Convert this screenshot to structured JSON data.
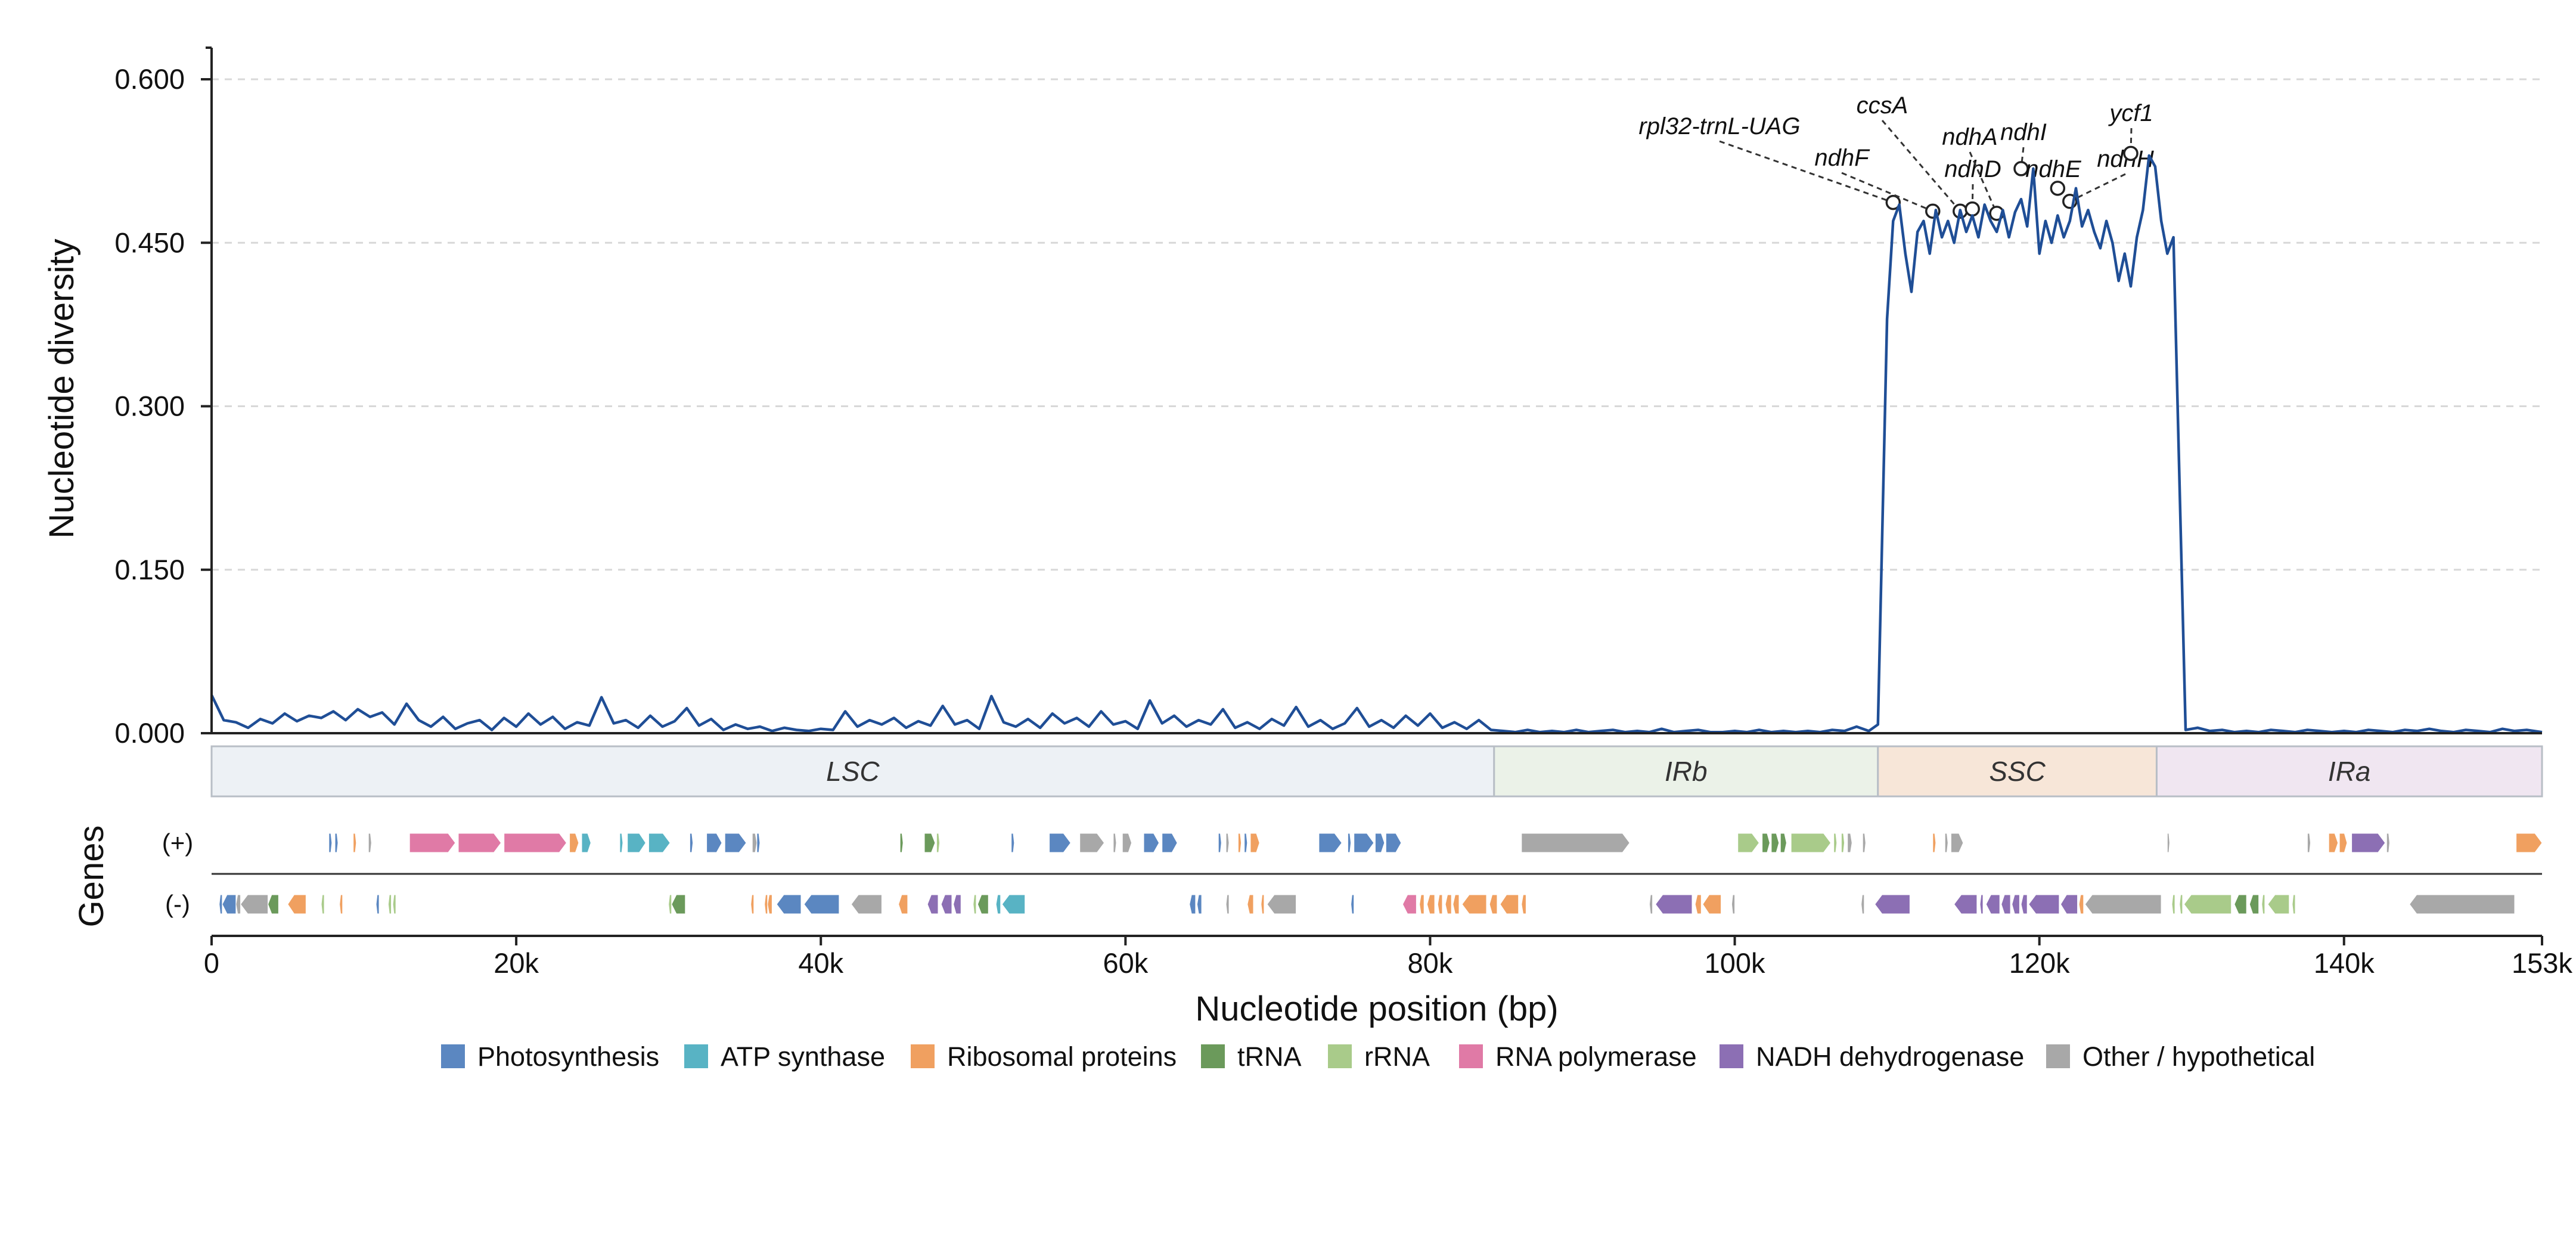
{
  "chart_data": {
    "type": "line",
    "ylabel": "Nucleotide diversity",
    "xlabel": "Nucleotide position (bp)",
    "genes_label": "Genes",
    "xlim": [
      0,
      153000
    ],
    "ylim": [
      0,
      0.62
    ],
    "yticks": [
      0.0,
      0.15,
      0.3,
      0.45,
      0.6
    ],
    "ytick_labels": [
      "0.000",
      "0.150",
      "0.300",
      "0.450",
      "0.600"
    ],
    "xticks": [
      0,
      20000,
      40000,
      60000,
      80000,
      100000,
      120000,
      140000,
      153000
    ],
    "xtick_labels": [
      "0",
      "20k",
      "40k",
      "60k",
      "80k",
      "100k",
      "120k",
      "140k",
      "153k"
    ],
    "grid": true,
    "series": [
      {
        "color": "#1f4e96",
        "x": [
          0,
          800,
          1600,
          2400,
          3200,
          4000,
          4800,
          5600,
          6400,
          7200,
          8000,
          8800,
          9600,
          10400,
          11200,
          12000,
          12800,
          13600,
          14400,
          15200,
          16000,
          16800,
          17600,
          18400,
          19200,
          20000,
          20800,
          21600,
          22400,
          23200,
          24000,
          24800,
          25600,
          26400,
          27200,
          28000,
          28800,
          29600,
          30400,
          31200,
          32000,
          32800,
          33600,
          34400,
          35200,
          36000,
          36800,
          37600,
          38400,
          39200,
          40000,
          40800,
          41600,
          42400,
          43200,
          44000,
          44800,
          45600,
          46400,
          47200,
          48000,
          48800,
          49600,
          50400,
          51200,
          52000,
          52800,
          53600,
          54400,
          55200,
          56000,
          56800,
          57600,
          58400,
          59200,
          60000,
          60800,
          61600,
          62400,
          63200,
          64000,
          64800,
          65600,
          66400,
          67200,
          68000,
          68800,
          69600,
          70400,
          71200,
          72000,
          72800,
          73600,
          74400,
          75200,
          76000,
          76800,
          77600,
          78400,
          79200,
          80000,
          80800,
          81600,
          82400,
          83200,
          84000,
          84800,
          85600,
          86400,
          87200,
          88000,
          88800,
          89600,
          90400,
          91200,
          92000,
          92800,
          93600,
          94400,
          95200,
          96000,
          96800,
          97600,
          98400,
          99200,
          100000,
          100800,
          101600,
          102400,
          103200,
          104000,
          104800,
          105600,
          106400,
          107200,
          108000,
          108800,
          109400,
          110000,
          110400,
          110800,
          111200,
          111600,
          112000,
          112400,
          112800,
          113200,
          113600,
          114000,
          114400,
          114800,
          115200,
          115600,
          116000,
          116400,
          116800,
          117200,
          117600,
          118000,
          118400,
          118800,
          119200,
          119600,
          120000,
          120400,
          120800,
          121200,
          121600,
          122000,
          122400,
          122800,
          123200,
          123600,
          124000,
          124400,
          124800,
          125200,
          125600,
          126000,
          126400,
          126800,
          127200,
          127600,
          128000,
          128400,
          128800,
          129600,
          130400,
          131200,
          132000,
          132800,
          133600,
          134400,
          135200,
          136000,
          136800,
          137600,
          138400,
          139200,
          140000,
          140800,
          141600,
          142400,
          143200,
          144000,
          144800,
          145600,
          146400,
          147200,
          148000,
          148800,
          149600,
          150400,
          151200,
          152000,
          153000
        ],
        "y": [
          0.035,
          0.012,
          0.01,
          0.005,
          0.013,
          0.009,
          0.018,
          0.011,
          0.016,
          0.014,
          0.02,
          0.012,
          0.022,
          0.015,
          0.019,
          0.008,
          0.027,
          0.012,
          0.006,
          0.015,
          0.004,
          0.009,
          0.012,
          0.003,
          0.014,
          0.006,
          0.018,
          0.008,
          0.015,
          0.004,
          0.01,
          0.007,
          0.033,
          0.009,
          0.012,
          0.005,
          0.016,
          0.006,
          0.011,
          0.023,
          0.007,
          0.013,
          0.003,
          0.008,
          0.004,
          0.006,
          0.002,
          0.005,
          0.003,
          0.002,
          0.004,
          0.003,
          0.02,
          0.006,
          0.012,
          0.008,
          0.014,
          0.005,
          0.011,
          0.007,
          0.025,
          0.008,
          0.012,
          0.004,
          0.034,
          0.01,
          0.006,
          0.013,
          0.005,
          0.018,
          0.009,
          0.014,
          0.006,
          0.02,
          0.008,
          0.011,
          0.004,
          0.03,
          0.009,
          0.016,
          0.006,
          0.012,
          0.008,
          0.022,
          0.005,
          0.01,
          0.004,
          0.013,
          0.007,
          0.024,
          0.006,
          0.012,
          0.004,
          0.009,
          0.023,
          0.006,
          0.012,
          0.005,
          0.016,
          0.007,
          0.018,
          0.005,
          0.01,
          0.004,
          0.012,
          0.003,
          0.002,
          0.001,
          0.003,
          0.001,
          0.002,
          0.001,
          0.003,
          0.001,
          0.002,
          0.003,
          0.001,
          0.002,
          0.001,
          0.004,
          0.001,
          0.002,
          0.003,
          0.001,
          0.001,
          0.002,
          0.001,
          0.003,
          0.001,
          0.002,
          0.001,
          0.002,
          0.001,
          0.003,
          0.002,
          0.006,
          0.002,
          0.008,
          0.38,
          0.47,
          0.485,
          0.44,
          0.405,
          0.46,
          0.47,
          0.44,
          0.48,
          0.455,
          0.47,
          0.45,
          0.48,
          0.46,
          0.475,
          0.455,
          0.485,
          0.47,
          0.46,
          0.48,
          0.455,
          0.478,
          0.49,
          0.465,
          0.518,
          0.44,
          0.47,
          0.45,
          0.475,
          0.455,
          0.47,
          0.5,
          0.465,
          0.48,
          0.46,
          0.445,
          0.47,
          0.45,
          0.415,
          0.44,
          0.41,
          0.455,
          0.48,
          0.53,
          0.52,
          0.47,
          0.44,
          0.455,
          0.003,
          0.005,
          0.002,
          0.003,
          0.001,
          0.002,
          0.001,
          0.003,
          0.002,
          0.001,
          0.003,
          0.002,
          0.001,
          0.002,
          0.001,
          0.003,
          0.002,
          0.001,
          0.003,
          0.002,
          0.004,
          0.002,
          0.001,
          0.003,
          0.002,
          0.001,
          0.004,
          0.002,
          0.003,
          0.001
        ]
      }
    ],
    "regions": [
      {
        "name": "LSC",
        "start": 0,
        "end": 84200,
        "fill": "#edf1f5"
      },
      {
        "name": "IRb",
        "start": 84200,
        "end": 109400,
        "fill": "#ebf2e8"
      },
      {
        "name": "SSC",
        "start": 109400,
        "end": 127700,
        "fill": "#f7e6d8"
      },
      {
        "name": "IRa",
        "start": 127700,
        "end": 153000,
        "fill": "#f0e6f1"
      }
    ],
    "annotations": [
      {
        "label": "rpl32-trnL-UAG",
        "x": 110400,
        "y": 0.487
      },
      {
        "label": "ndhF",
        "x": 113000,
        "y": 0.479
      },
      {
        "label": "ccsA",
        "x": 114800,
        "y": 0.479
      },
      {
        "label": "ndhD",
        "x": 115600,
        "y": 0.481
      },
      {
        "label": "ndhA",
        "x": 117200,
        "y": 0.477
      },
      {
        "label": "ndhI",
        "x": 118800,
        "y": 0.518
      },
      {
        "label": "ndhE",
        "x": 121200,
        "y": 0.5
      },
      {
        "label": "ndhH",
        "x": 122000,
        "y": 0.488
      },
      {
        "label": "ycf1",
        "x": 126000,
        "y": 0.532
      }
    ],
    "gene_categories": [
      {
        "key": "photo",
        "label": "Photosynthesis",
        "color": "#5b87c1"
      },
      {
        "key": "atp",
        "label": "ATP synthase",
        "color": "#58b3c4"
      },
      {
        "key": "ribo",
        "label": "Ribosomal proteins",
        "color": "#f0a060"
      },
      {
        "key": "trna",
        "label": "tRNA",
        "color": "#6b9a5b"
      },
      {
        "key": "rrna",
        "label": "rRNA",
        "color": "#a9cb8a"
      },
      {
        "key": "rnap",
        "label": "RNA polymerase",
        "color": "#e07aa6"
      },
      {
        "key": "ndh",
        "label": "NADH dehydrogenase",
        "color": "#8c6fb4"
      },
      {
        "key": "other",
        "label": "Other / hypothetical",
        "color": "#a8a8a8"
      }
    ],
    "strand_labels": [
      "(+)",
      "(-)"
    ],
    "genes_plus": [
      [
        7700,
        7900,
        "photo"
      ],
      [
        8100,
        8300,
        "photo"
      ],
      [
        9300,
        9500,
        "ribo"
      ],
      [
        10300,
        10500,
        "other"
      ],
      [
        13000,
        16000,
        "rnap"
      ],
      [
        16200,
        19000,
        "rnap"
      ],
      [
        19200,
        23300,
        "rnap"
      ],
      [
        23500,
        24100,
        "ribo"
      ],
      [
        24300,
        24900,
        "atp"
      ],
      [
        26800,
        27000,
        "atp"
      ],
      [
        27300,
        28500,
        "atp"
      ],
      [
        28700,
        30100,
        "atp"
      ],
      [
        31400,
        31600,
        "photo"
      ],
      [
        32500,
        33500,
        "photo"
      ],
      [
        33700,
        35100,
        "photo"
      ],
      [
        35500,
        35800,
        "other"
      ],
      [
        35800,
        36000,
        "photo"
      ],
      [
        45200,
        45400,
        "trna"
      ],
      [
        46800,
        47500,
        "trna"
      ],
      [
        47600,
        47800,
        "rrna"
      ],
      [
        52500,
        52700,
        "photo"
      ],
      [
        55000,
        56400,
        "photo"
      ],
      [
        57000,
        58600,
        "other"
      ],
      [
        59200,
        59400,
        "other"
      ],
      [
        59800,
        60400,
        "other"
      ],
      [
        61200,
        62200,
        "photo"
      ],
      [
        62400,
        63400,
        "photo"
      ],
      [
        66100,
        66300,
        "photo"
      ],
      [
        66600,
        66800,
        "other"
      ],
      [
        67400,
        67600,
        "ribo"
      ],
      [
        67800,
        68000,
        "photo"
      ],
      [
        68200,
        68800,
        "ribo"
      ],
      [
        72700,
        74200,
        "photo"
      ],
      [
        74600,
        74800,
        "photo"
      ],
      [
        75000,
        76300,
        "photo"
      ],
      [
        76400,
        77000,
        "photo"
      ],
      [
        77100,
        78100,
        "photo"
      ],
      [
        86000,
        93100,
        "other"
      ],
      [
        100200,
        101600,
        "rrna"
      ],
      [
        101800,
        102300,
        "trna"
      ],
      [
        102400,
        102900,
        "trna"
      ],
      [
        103000,
        103400,
        "trna"
      ],
      [
        103700,
        106300,
        "rrna"
      ],
      [
        106500,
        106700,
        "rrna"
      ],
      [
        107000,
        107200,
        "rrna"
      ],
      [
        107400,
        107700,
        "other"
      ],
      [
        108400,
        108600,
        "other"
      ],
      [
        113000,
        113200,
        "ribo"
      ],
      [
        113800,
        114000,
        "other"
      ],
      [
        114200,
        115000,
        "other"
      ],
      [
        128400,
        128500,
        "other"
      ],
      [
        137600,
        137800,
        "other"
      ],
      [
        139000,
        139600,
        "ribo"
      ],
      [
        139700,
        140200,
        "ribo"
      ],
      [
        140500,
        142700,
        "ndh"
      ],
      [
        142800,
        143000,
        "other"
      ],
      [
        151300,
        153000,
        "ribo"
      ]
    ],
    "genes_minus": [
      [
        500,
        700,
        "photo"
      ],
      [
        700,
        1600,
        "photo"
      ],
      [
        1600,
        1900,
        "other"
      ],
      [
        1900,
        3700,
        "other"
      ],
      [
        3700,
        4400,
        "trna"
      ],
      [
        5000,
        6200,
        "ribo"
      ],
      [
        7200,
        7400,
        "rrna"
      ],
      [
        8400,
        8600,
        "ribo"
      ],
      [
        10800,
        11000,
        "photo"
      ],
      [
        11600,
        11800,
        "rrna"
      ],
      [
        11900,
        12100,
        "rrna"
      ],
      [
        30000,
        30200,
        "rrna"
      ],
      [
        30200,
        31100,
        "trna"
      ],
      [
        35400,
        35600,
        "ribo"
      ],
      [
        36300,
        36500,
        "ribo"
      ],
      [
        36500,
        36800,
        "ribo"
      ],
      [
        37100,
        38700,
        "photo"
      ],
      [
        38900,
        41200,
        "photo"
      ],
      [
        42000,
        44000,
        "other"
      ],
      [
        45100,
        45700,
        "ribo"
      ],
      [
        47000,
        47700,
        "ndh"
      ],
      [
        47900,
        48600,
        "ndh"
      ],
      [
        48700,
        49200,
        "ndh"
      ],
      [
        50000,
        50200,
        "rrna"
      ],
      [
        50300,
        51000,
        "trna"
      ],
      [
        51500,
        51800,
        "atp"
      ],
      [
        51900,
        53400,
        "atp"
      ],
      [
        64200,
        64600,
        "photo"
      ],
      [
        64700,
        65000,
        "photo"
      ],
      [
        66600,
        66800,
        "other"
      ],
      [
        68000,
        68400,
        "ribo"
      ],
      [
        68900,
        69100,
        "ribo"
      ],
      [
        69300,
        71200,
        "other"
      ],
      [
        74800,
        75000,
        "photo"
      ],
      [
        78200,
        79100,
        "rnap"
      ],
      [
        79300,
        79600,
        "ribo"
      ],
      [
        79800,
        80300,
        "ribo"
      ],
      [
        80500,
        80800,
        "ribo"
      ],
      [
        81000,
        81400,
        "ribo"
      ],
      [
        81500,
        81900,
        "ribo"
      ],
      [
        82100,
        83700,
        "ribo"
      ],
      [
        83900,
        84400,
        "ribo"
      ],
      [
        84600,
        85800,
        "ribo"
      ],
      [
        86000,
        86300,
        "ribo"
      ],
      [
        94400,
        94600,
        "other"
      ],
      [
        94800,
        97200,
        "ndh"
      ],
      [
        97400,
        97800,
        "ribo"
      ],
      [
        97900,
        99100,
        "ribo"
      ],
      [
        99800,
        100000,
        "other"
      ],
      [
        108300,
        108500,
        "other"
      ],
      [
        109200,
        111500,
        "ndh"
      ],
      [
        114400,
        115900,
        "ndh"
      ],
      [
        116100,
        116300,
        "ndh"
      ],
      [
        116500,
        117400,
        "ndh"
      ],
      [
        117500,
        118100,
        "ndh"
      ],
      [
        118200,
        118700,
        "ndh"
      ],
      [
        118800,
        119200,
        "ndh"
      ],
      [
        119300,
        121300,
        "ndh"
      ],
      [
        121400,
        122500,
        "ndh"
      ],
      [
        122600,
        122900,
        "ribo"
      ],
      [
        123000,
        128000,
        "other"
      ],
      [
        128700,
        128900,
        "rrna"
      ],
      [
        129200,
        129400,
        "rrna"
      ],
      [
        129500,
        132600,
        "rrna"
      ],
      [
        132800,
        133600,
        "trna"
      ],
      [
        133800,
        134400,
        "trna"
      ],
      [
        134600,
        134800,
        "rrna"
      ],
      [
        135000,
        136400,
        "rrna"
      ],
      [
        136600,
        136800,
        "rrna"
      ],
      [
        144300,
        151200,
        "other"
      ]
    ]
  }
}
